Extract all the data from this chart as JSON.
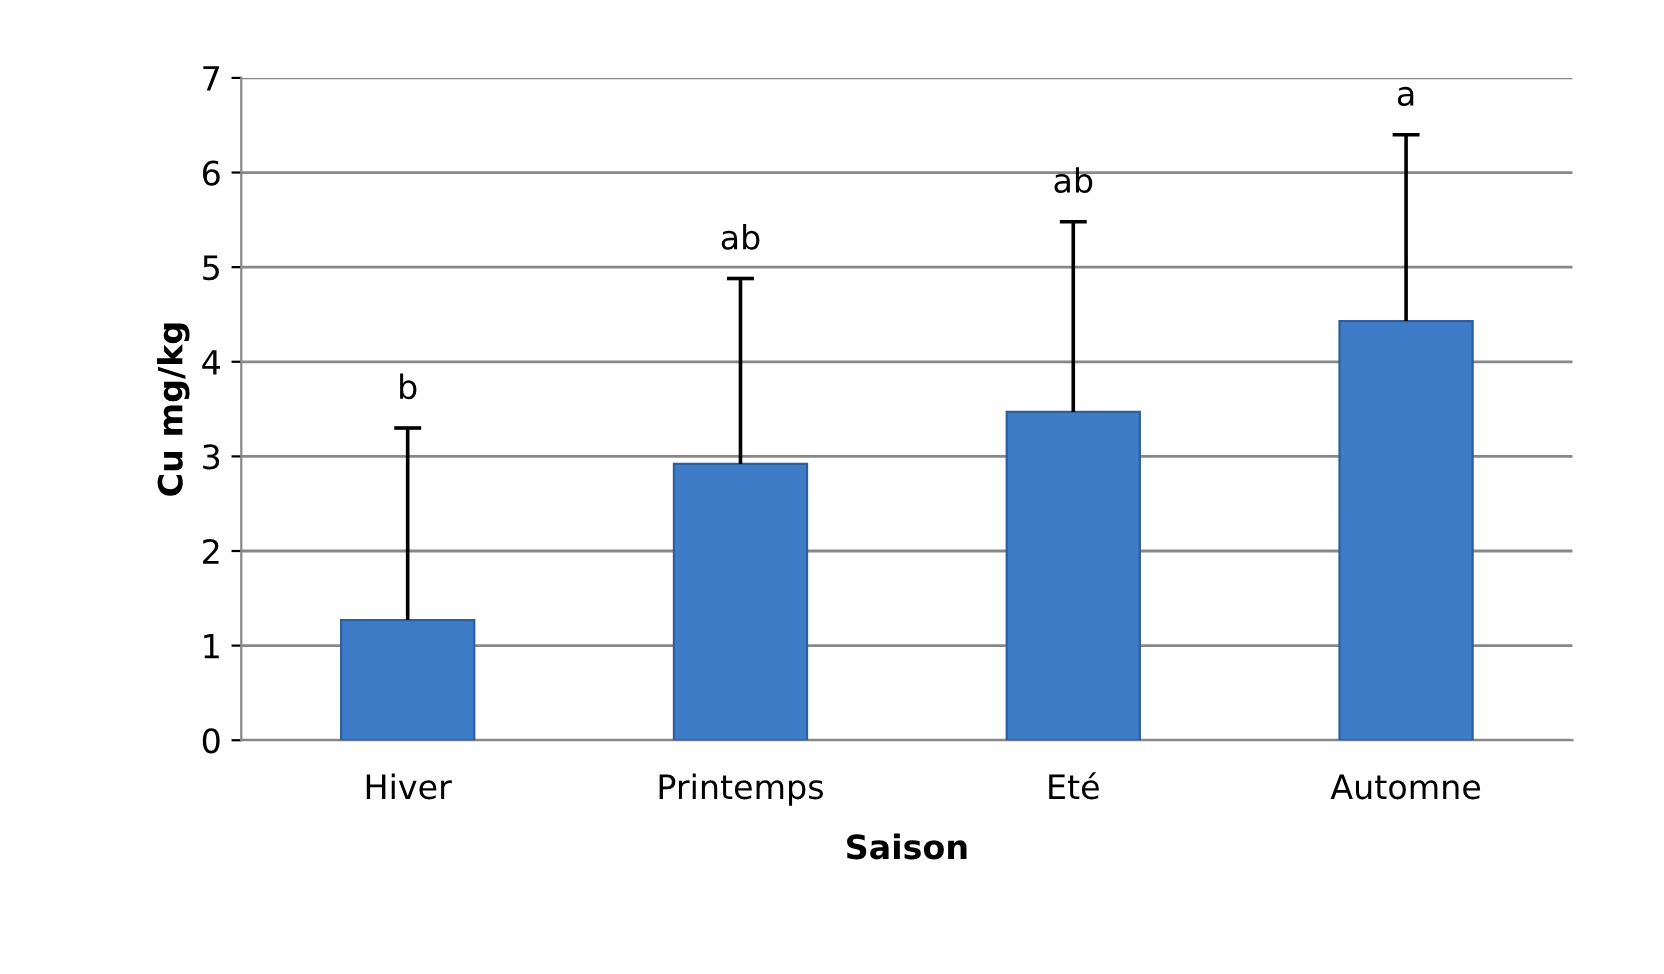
{
  "chart_data": {
    "type": "bar",
    "xlabel": "Saison",
    "ylabel": "Cu mg/kg",
    "categories": [
      "Hiver",
      "Printemps",
      "Eté",
      "Automne"
    ],
    "values": [
      1.27,
      2.92,
      3.47,
      4.43
    ],
    "errors": [
      [
        1.27,
        3.3
      ],
      [
        2.92,
        4.88
      ],
      [
        3.47,
        5.48
      ],
      [
        4.43,
        6.4
      ]
    ],
    "color": "#3f7cc8",
    "ylim": [
      0,
      7
    ],
    "yticks": [
      0,
      1,
      2,
      3,
      4,
      5,
      6,
      7
    ],
    "grid": "y",
    "annotations": [
      "b",
      "ab",
      "ab",
      "a"
    ]
  }
}
